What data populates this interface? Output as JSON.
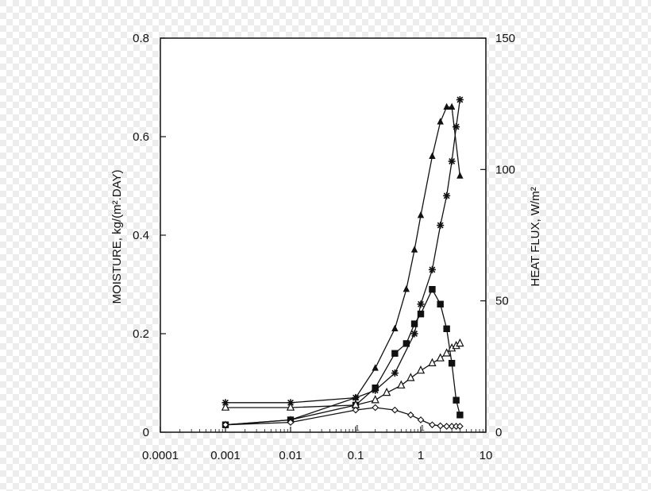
{
  "chart_data": {
    "type": "line",
    "title": "",
    "xlabel": "",
    "xscale": "log",
    "xlim": [
      0.0001,
      10
    ],
    "xticks": [
      0.0001,
      0.001,
      0.01,
      0.1,
      1,
      10
    ],
    "xtick_labels": [
      "0.0001",
      "0.001",
      "0.01",
      "0.1",
      "1",
      "10"
    ],
    "ylabel_left": "MOISTURE, kg/(m².DAY)",
    "ylim_left": [
      0,
      0.8
    ],
    "yticks_left": [
      0,
      0.2,
      0.4,
      0.6,
      0.8
    ],
    "ytick_labels_left": [
      "0",
      "0.2",
      "0.4",
      "0.6",
      "0.8"
    ],
    "ylabel_right": "HEAT FLUX, W/m²",
    "ylim_right": [
      0,
      150
    ],
    "yticks_right": [
      0,
      50,
      100,
      150
    ],
    "ytick_labels_right": [
      "0",
      "50",
      "100",
      "150"
    ],
    "minor_labels": [
      "1",
      "1"
    ],
    "grid": false,
    "legend": "none",
    "series": [
      {
        "marker": "filled-triangle",
        "x": [
          0.001,
          0.01,
          0.1,
          0.2,
          0.4,
          0.6,
          0.8,
          1,
          1.5,
          2,
          2.5,
          3,
          4
        ],
        "y": [
          0.015,
          0.025,
          0.07,
          0.13,
          0.21,
          0.29,
          0.37,
          0.44,
          0.56,
          0.63,
          0.66,
          0.66,
          0.52
        ]
      },
      {
        "marker": "asterisk",
        "x": [
          0.001,
          0.01,
          0.1,
          0.2,
          0.4,
          0.8,
          1,
          1.5,
          2,
          2.5,
          3,
          3.5,
          4
        ],
        "y": [
          0.06,
          0.06,
          0.07,
          0.085,
          0.12,
          0.2,
          0.26,
          0.33,
          0.42,
          0.48,
          0.55,
          0.62,
          0.675
        ]
      },
      {
        "marker": "filled-square",
        "x": [
          0.001,
          0.01,
          0.1,
          0.2,
          0.4,
          0.6,
          0.8,
          1,
          1.5,
          2,
          2.5,
          3,
          3.5,
          4
        ],
        "y": [
          0.015,
          0.025,
          0.055,
          0.09,
          0.16,
          0.18,
          0.22,
          0.24,
          0.29,
          0.26,
          0.21,
          0.14,
          0.065,
          0.035
        ]
      },
      {
        "marker": "open-triangle",
        "x": [
          0.001,
          0.01,
          0.1,
          0.2,
          0.3,
          0.5,
          0.7,
          1,
          1.5,
          2,
          2.5,
          3,
          3.5,
          4
        ],
        "y": [
          0.05,
          0.05,
          0.055,
          0.065,
          0.08,
          0.095,
          0.11,
          0.125,
          0.14,
          0.15,
          0.16,
          0.17,
          0.175,
          0.18
        ]
      },
      {
        "marker": "open-diamond",
        "x": [
          0.001,
          0.01,
          0.1,
          0.2,
          0.4,
          0.7,
          1,
          1.5,
          2,
          2.5,
          3,
          3.5,
          4
        ],
        "y": [
          0.015,
          0.02,
          0.045,
          0.05,
          0.045,
          0.035,
          0.025,
          0.015,
          0.013,
          0.012,
          0.012,
          0.012,
          0.012
        ]
      }
    ]
  }
}
